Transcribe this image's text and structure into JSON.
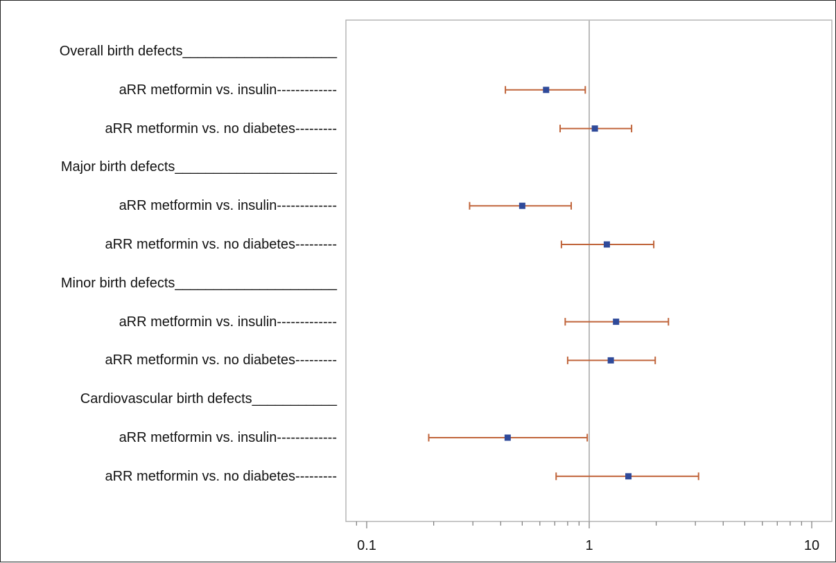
{
  "chart_data": {
    "type": "forest",
    "title": "",
    "xlabel": "",
    "ylabel": "",
    "x_scale": "log",
    "xlim": [
      0.06,
      11
    ],
    "reference_line": 1,
    "grid": false,
    "legend": "none",
    "x_ticks": [
      "0.1",
      "1",
      "10"
    ],
    "colors": {
      "point": "#2f4a9a",
      "interval": "#c0643a",
      "reference_line": "#bbbbbb",
      "axis": "#aaaaaa"
    },
    "rows": [
      {
        "label": "Overall birth defects____________________",
        "type": "header"
      },
      {
        "label": "aRR metformin vs. insulin-------------",
        "type": "estimate",
        "estimate": 0.64,
        "lower": 0.42,
        "upper": 0.96
      },
      {
        "label": "aRR metformin vs. no diabetes---------",
        "type": "estimate",
        "estimate": 1.06,
        "lower": 0.74,
        "upper": 1.55
      },
      {
        "label": "Major birth defects_____________________",
        "type": "header"
      },
      {
        "label": "aRR metformin vs. insulin-------------",
        "type": "estimate",
        "estimate": 0.5,
        "lower": 0.29,
        "upper": 0.83
      },
      {
        "label": "aRR metformin vs. no diabetes---------",
        "type": "estimate",
        "estimate": 1.2,
        "lower": 0.75,
        "upper": 1.95
      },
      {
        "label": "Minor birth defects_____________________",
        "type": "header"
      },
      {
        "label": "aRR metformin vs. insulin-------------",
        "type": "estimate",
        "estimate": 1.32,
        "lower": 0.78,
        "upper": 2.27
      },
      {
        "label": "aRR metformin vs. no diabetes---------",
        "type": "estimate",
        "estimate": 1.25,
        "lower": 0.8,
        "upper": 1.98
      },
      {
        "label": "Cardiovascular birth defects___________",
        "type": "header"
      },
      {
        "label": "aRR metformin vs. insulin-------------",
        "type": "estimate",
        "estimate": 0.43,
        "lower": 0.19,
        "upper": 0.98
      },
      {
        "label": "aRR metformin vs. no diabetes---------",
        "type": "estimate",
        "estimate": 1.5,
        "lower": 0.71,
        "upper": 3.1
      }
    ]
  }
}
